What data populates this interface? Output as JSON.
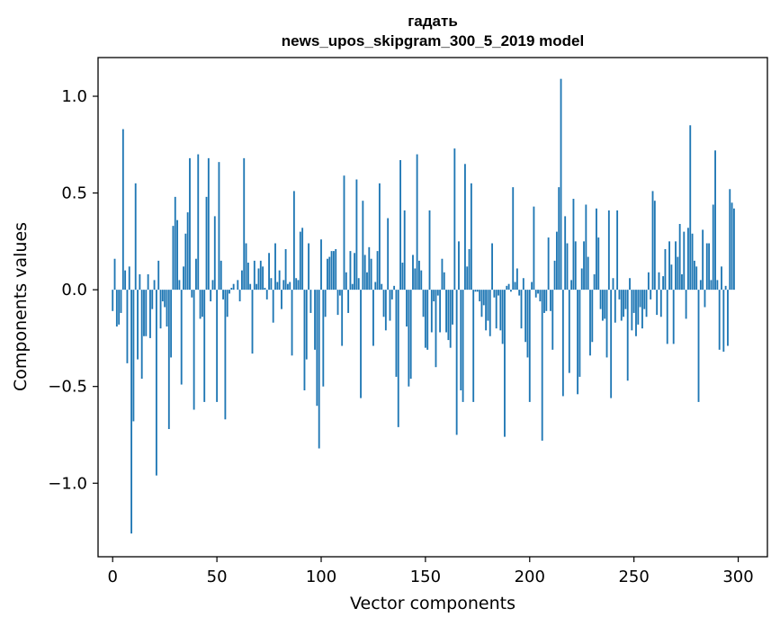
{
  "chart_data": {
    "type": "bar",
    "title": "гадать",
    "subtitle": "news_upos_skipgram_300_5_2019 model",
    "xlabel": "Vector components",
    "ylabel": "Components values",
    "xlim": [
      -7,
      314
    ],
    "ylim": [
      -1.38,
      1.2
    ],
    "xticks": [
      0,
      50,
      100,
      150,
      200,
      250,
      300
    ],
    "yticks": [
      -1.0,
      -0.5,
      0.0,
      0.5,
      1.0
    ],
    "ytick_labels": [
      "−1.0",
      "−0.5",
      "0.0",
      "0.5",
      "1.0"
    ],
    "bar_color": "#1f77b4",
    "grid": false,
    "x_start": 0,
    "values": [
      -0.11,
      0.16,
      -0.19,
      -0.18,
      -0.12,
      0.83,
      0.1,
      -0.38,
      0.12,
      -1.26,
      -0.68,
      0.55,
      -0.36,
      0.08,
      -0.46,
      -0.24,
      -0.24,
      0.08,
      -0.25,
      -0.1,
      0.05,
      -0.96,
      0.15,
      -0.2,
      -0.06,
      -0.09,
      -0.19,
      -0.72,
      -0.35,
      0.33,
      0.48,
      0.36,
      0.05,
      -0.49,
      0.12,
      0.29,
      0.4,
      0.68,
      -0.04,
      -0.62,
      0.16,
      0.7,
      -0.15,
      -0.14,
      -0.58,
      0.48,
      0.68,
      -0.06,
      0.05,
      0.38,
      -0.58,
      0.66,
      0.15,
      -0.05,
      -0.67,
      -0.14,
      -0.02,
      0.01,
      0.03,
      0.0,
      0.05,
      -0.06,
      0.1,
      0.68,
      0.24,
      0.14,
      0.03,
      -0.33,
      0.15,
      0.03,
      0.11,
      0.15,
      0.12,
      0.01,
      -0.05,
      0.19,
      0.06,
      -0.17,
      0.24,
      0.04,
      0.1,
      -0.1,
      0.05,
      0.21,
      0.03,
      0.04,
      -0.34,
      0.51,
      0.06,
      0.05,
      0.3,
      0.32,
      -0.52,
      -0.36,
      0.24,
      -0.12,
      0.0,
      -0.31,
      -0.6,
      -0.82,
      0.26,
      -0.5,
      -0.14,
      0.16,
      0.17,
      0.2,
      0.2,
      0.21,
      -0.13,
      -0.03,
      -0.29,
      0.59,
      0.09,
      -0.12,
      0.2,
      0.03,
      0.19,
      0.57,
      0.06,
      -0.56,
      0.46,
      0.18,
      0.09,
      0.22,
      0.16,
      -0.29,
      0.04,
      0.2,
      0.55,
      0.03,
      -0.14,
      -0.21,
      0.37,
      -0.16,
      -0.05,
      0.02,
      -0.45,
      -0.71,
      0.67,
      0.14,
      0.41,
      -0.19,
      -0.5,
      -0.46,
      0.18,
      0.11,
      0.7,
      0.15,
      0.1,
      -0.14,
      -0.3,
      -0.31,
      0.41,
      -0.22,
      -0.06,
      -0.4,
      -0.03,
      -0.22,
      0.16,
      0.09,
      -0.22,
      -0.26,
      -0.3,
      -0.18,
      0.73,
      -0.75,
      0.25,
      -0.52,
      -0.58,
      0.65,
      0.12,
      0.21,
      0.55,
      -0.58,
      -0.01,
      -0.01,
      -0.06,
      -0.14,
      -0.08,
      -0.21,
      -0.16,
      -0.24,
      0.24,
      -0.04,
      -0.2,
      -0.03,
      -0.21,
      -0.28,
      -0.76,
      0.02,
      0.03,
      -0.01,
      0.53,
      0.04,
      0.11,
      -0.03,
      -0.2,
      0.06,
      -0.27,
      -0.35,
      -0.58,
      0.04,
      0.43,
      -0.04,
      -0.02,
      -0.06,
      -0.78,
      -0.12,
      -0.11,
      0.27,
      -0.11,
      -0.31,
      0.15,
      0.3,
      0.53,
      1.09,
      -0.55,
      0.38,
      0.24,
      -0.43,
      0.05,
      0.47,
      0.25,
      -0.54,
      -0.45,
      0.11,
      0.25,
      0.44,
      0.17,
      -0.34,
      -0.27,
      0.08,
      0.42,
      0.27,
      -0.1,
      -0.16,
      -0.15,
      -0.35,
      0.41,
      -0.56,
      0.06,
      -0.17,
      0.41,
      -0.05,
      -0.16,
      -0.14,
      -0.1,
      -0.47,
      0.06,
      -0.21,
      -0.12,
      -0.24,
      -0.18,
      -0.09,
      -0.2,
      -0.1,
      -0.14,
      0.09,
      -0.05,
      0.51,
      0.46,
      -0.13,
      0.09,
      -0.14,
      0.07,
      0.21,
      -0.28,
      0.25,
      0.13,
      -0.28,
      0.25,
      0.17,
      0.34,
      0.08,
      0.3,
      -0.15,
      0.32,
      0.85,
      0.29,
      0.15,
      0.12,
      -0.58,
      0.05,
      0.31,
      -0.09,
      0.24,
      0.24,
      0.05,
      0.44,
      0.72,
      0.05,
      -0.31,
      0.12,
      -0.32,
      0.02,
      -0.29,
      0.52,
      0.45,
      0.42
    ]
  }
}
